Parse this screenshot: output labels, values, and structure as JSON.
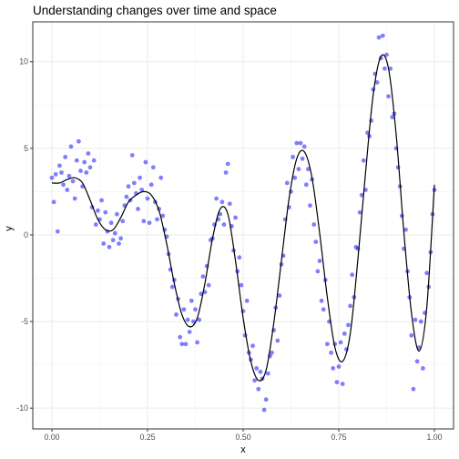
{
  "chart_data": {
    "type": "scatter",
    "title": "Understanding changes over time and space",
    "xlabel": "x",
    "ylabel": "y",
    "xlim": [
      -0.05,
      1.05
    ],
    "ylim": [
      -11.2,
      12.3
    ],
    "x_ticks": [
      0.0,
      0.25,
      0.5,
      0.75,
      1.0
    ],
    "x_tick_labels": [
      "0.00",
      "0.25",
      "0.50",
      "0.75",
      "1.00"
    ],
    "y_ticks": [
      -10,
      -5,
      0,
      5,
      10
    ],
    "y_tick_labels": [
      "-10",
      "-5",
      "0",
      "5",
      "10"
    ],
    "grid": true,
    "legend": "none",
    "point_color": "#0000ff",
    "point_alpha": 0.5,
    "line_color": "#000000",
    "fitted_curve": {
      "x": [
        0.0,
        0.02,
        0.04,
        0.06,
        0.08,
        0.1,
        0.12,
        0.14,
        0.16,
        0.18,
        0.2,
        0.22,
        0.24,
        0.26,
        0.28,
        0.3,
        0.32,
        0.34,
        0.36,
        0.38,
        0.4,
        0.42,
        0.44,
        0.46,
        0.48,
        0.5,
        0.52,
        0.54,
        0.56,
        0.58,
        0.6,
        0.62,
        0.64,
        0.66,
        0.68,
        0.7,
        0.72,
        0.74,
        0.76,
        0.78,
        0.8,
        0.82,
        0.84,
        0.86,
        0.88,
        0.9,
        0.92,
        0.94,
        0.96,
        0.98,
        1.0
      ],
      "y": [
        3.0,
        3.0,
        3.2,
        3.3,
        3.0,
        2.0,
        0.9,
        0.3,
        0.3,
        1.0,
        1.9,
        2.3,
        2.5,
        2.3,
        1.4,
        -0.5,
        -2.8,
        -4.6,
        -5.3,
        -4.8,
        -2.8,
        -0.2,
        1.5,
        1.2,
        -1.5,
        -4.8,
        -7.3,
        -8.4,
        -7.8,
        -5.1,
        -1.5,
        2.1,
        4.4,
        4.8,
        3.3,
        0.1,
        -3.6,
        -6.5,
        -7.3,
        -5.7,
        -1.4,
        3.6,
        8.1,
        10.3,
        9.6,
        5.8,
        0.2,
        -4.5,
        -6.7,
        -4.2,
        2.9
      ]
    },
    "points": [
      {
        "x": 0.0,
        "y": 3.3
      },
      {
        "x": 0.005,
        "y": 1.9
      },
      {
        "x": 0.01,
        "y": 3.5
      },
      {
        "x": 0.015,
        "y": 0.2
      },
      {
        "x": 0.02,
        "y": 4.0
      },
      {
        "x": 0.025,
        "y": 3.6
      },
      {
        "x": 0.03,
        "y": 2.9
      },
      {
        "x": 0.035,
        "y": 4.5
      },
      {
        "x": 0.04,
        "y": 2.6
      },
      {
        "x": 0.045,
        "y": 3.4
      },
      {
        "x": 0.05,
        "y": 5.1
      },
      {
        "x": 0.055,
        "y": 3.1
      },
      {
        "x": 0.06,
        "y": 2.1
      },
      {
        "x": 0.065,
        "y": 4.3
      },
      {
        "x": 0.07,
        "y": 5.4
      },
      {
        "x": 0.075,
        "y": 3.7
      },
      {
        "x": 0.08,
        "y": 2.8
      },
      {
        "x": 0.085,
        "y": 4.2
      },
      {
        "x": 0.09,
        "y": 3.6
      },
      {
        "x": 0.095,
        "y": 4.7
      },
      {
        "x": 0.1,
        "y": 3.9
      },
      {
        "x": 0.105,
        "y": 1.6
      },
      {
        "x": 0.11,
        "y": 4.3
      },
      {
        "x": 0.115,
        "y": 0.6
      },
      {
        "x": 0.12,
        "y": 1.4
      },
      {
        "x": 0.125,
        "y": 0.9
      },
      {
        "x": 0.13,
        "y": 2.0
      },
      {
        "x": 0.135,
        "y": -0.5
      },
      {
        "x": 0.14,
        "y": 1.3
      },
      {
        "x": 0.145,
        "y": 0.2
      },
      {
        "x": 0.15,
        "y": -0.7
      },
      {
        "x": 0.155,
        "y": 0.7
      },
      {
        "x": 0.16,
        "y": -0.3
      },
      {
        "x": 0.165,
        "y": 0.1
      },
      {
        "x": 0.17,
        "y": 1.2
      },
      {
        "x": 0.175,
        "y": -0.5
      },
      {
        "x": 0.18,
        "y": -0.2
      },
      {
        "x": 0.185,
        "y": 0.8
      },
      {
        "x": 0.19,
        "y": 1.7
      },
      {
        "x": 0.195,
        "y": 2.2
      },
      {
        "x": 0.2,
        "y": 2.8
      },
      {
        "x": 0.205,
        "y": 2.0
      },
      {
        "x": 0.21,
        "y": 4.6
      },
      {
        "x": 0.215,
        "y": 3.0
      },
      {
        "x": 0.22,
        "y": 2.4
      },
      {
        "x": 0.225,
        "y": 1.5
      },
      {
        "x": 0.23,
        "y": 3.3
      },
      {
        "x": 0.235,
        "y": 2.6
      },
      {
        "x": 0.24,
        "y": 0.8
      },
      {
        "x": 0.245,
        "y": 4.2
      },
      {
        "x": 0.25,
        "y": 2.1
      },
      {
        "x": 0.255,
        "y": 0.7
      },
      {
        "x": 0.26,
        "y": 2.9
      },
      {
        "x": 0.265,
        "y": 3.9
      },
      {
        "x": 0.27,
        "y": 1.9
      },
      {
        "x": 0.275,
        "y": 0.9
      },
      {
        "x": 0.28,
        "y": 1.5
      },
      {
        "x": 0.285,
        "y": 3.3
      },
      {
        "x": 0.29,
        "y": 1.1
      },
      {
        "x": 0.295,
        "y": 0.3
      },
      {
        "x": 0.3,
        "y": -0.1
      },
      {
        "x": 0.305,
        "y": -1.1
      },
      {
        "x": 0.31,
        "y": -2.0
      },
      {
        "x": 0.315,
        "y": -3.0
      },
      {
        "x": 0.32,
        "y": -2.6
      },
      {
        "x": 0.325,
        "y": -4.6
      },
      {
        "x": 0.33,
        "y": -3.7
      },
      {
        "x": 0.335,
        "y": -5.9
      },
      {
        "x": 0.34,
        "y": -6.3
      },
      {
        "x": 0.345,
        "y": -4.3
      },
      {
        "x": 0.35,
        "y": -6.3
      },
      {
        "x": 0.355,
        "y": -4.9
      },
      {
        "x": 0.36,
        "y": -5.6
      },
      {
        "x": 0.365,
        "y": -3.8
      },
      {
        "x": 0.37,
        "y": -5.0
      },
      {
        "x": 0.375,
        "y": -4.3
      },
      {
        "x": 0.38,
        "y": -6.2
      },
      {
        "x": 0.385,
        "y": -4.9
      },
      {
        "x": 0.39,
        "y": -3.4
      },
      {
        "x": 0.395,
        "y": -2.4
      },
      {
        "x": 0.4,
        "y": -3.3
      },
      {
        "x": 0.405,
        "y": -1.8
      },
      {
        "x": 0.41,
        "y": -2.9
      },
      {
        "x": 0.415,
        "y": -0.3
      },
      {
        "x": 0.42,
        "y": -0.2
      },
      {
        "x": 0.425,
        "y": 0.6
      },
      {
        "x": 0.43,
        "y": 2.1
      },
      {
        "x": 0.435,
        "y": 0.9
      },
      {
        "x": 0.44,
        "y": 1.2
      },
      {
        "x": 0.445,
        "y": 1.9
      },
      {
        "x": 0.45,
        "y": 0.6
      },
      {
        "x": 0.455,
        "y": 3.6
      },
      {
        "x": 0.46,
        "y": 4.1
      },
      {
        "x": 0.465,
        "y": 1.8
      },
      {
        "x": 0.47,
        "y": 0.5
      },
      {
        "x": 0.475,
        "y": -0.9
      },
      {
        "x": 0.48,
        "y": 1.0
      },
      {
        "x": 0.485,
        "y": -2.1
      },
      {
        "x": 0.49,
        "y": -1.3
      },
      {
        "x": 0.495,
        "y": -2.9
      },
      {
        "x": 0.5,
        "y": -4.4
      },
      {
        "x": 0.505,
        "y": -5.8
      },
      {
        "x": 0.51,
        "y": -3.8
      },
      {
        "x": 0.515,
        "y": -6.8
      },
      {
        "x": 0.52,
        "y": -7.2
      },
      {
        "x": 0.525,
        "y": -6.4
      },
      {
        "x": 0.53,
        "y": -8.4
      },
      {
        "x": 0.535,
        "y": -7.7
      },
      {
        "x": 0.54,
        "y": -8.9
      },
      {
        "x": 0.545,
        "y": -7.9
      },
      {
        "x": 0.55,
        "y": -8.3
      },
      {
        "x": 0.555,
        "y": -10.1
      },
      {
        "x": 0.56,
        "y": -9.5
      },
      {
        "x": 0.565,
        "y": -8.0
      },
      {
        "x": 0.57,
        "y": -7.0
      },
      {
        "x": 0.575,
        "y": -6.8
      },
      {
        "x": 0.58,
        "y": -5.5
      },
      {
        "x": 0.585,
        "y": -4.2
      },
      {
        "x": 0.59,
        "y": -6.1
      },
      {
        "x": 0.595,
        "y": -3.5
      },
      {
        "x": 0.6,
        "y": -1.7
      },
      {
        "x": 0.605,
        "y": -1.2
      },
      {
        "x": 0.61,
        "y": 0.9
      },
      {
        "x": 0.615,
        "y": 3.0
      },
      {
        "x": 0.62,
        "y": 1.6
      },
      {
        "x": 0.625,
        "y": 2.5
      },
      {
        "x": 0.63,
        "y": 4.5
      },
      {
        "x": 0.635,
        "y": 3.3
      },
      {
        "x": 0.64,
        "y": 5.3
      },
      {
        "x": 0.645,
        "y": 3.8
      },
      {
        "x": 0.65,
        "y": 5.3
      },
      {
        "x": 0.655,
        "y": 4.4
      },
      {
        "x": 0.66,
        "y": 5.1
      },
      {
        "x": 0.665,
        "y": 2.9
      },
      {
        "x": 0.67,
        "y": 3.8
      },
      {
        "x": 0.675,
        "y": 1.7
      },
      {
        "x": 0.68,
        "y": 3.2
      },
      {
        "x": 0.685,
        "y": 0.6
      },
      {
        "x": 0.69,
        "y": -0.4
      },
      {
        "x": 0.695,
        "y": -2.1
      },
      {
        "x": 0.7,
        "y": -1.5
      },
      {
        "x": 0.705,
        "y": -3.8
      },
      {
        "x": 0.71,
        "y": -4.3
      },
      {
        "x": 0.715,
        "y": -2.6
      },
      {
        "x": 0.72,
        "y": -6.3
      },
      {
        "x": 0.725,
        "y": -5.0
      },
      {
        "x": 0.73,
        "y": -6.8
      },
      {
        "x": 0.735,
        "y": -7.7
      },
      {
        "x": 0.74,
        "y": -6.3
      },
      {
        "x": 0.745,
        "y": -8.5
      },
      {
        "x": 0.75,
        "y": -7.6
      },
      {
        "x": 0.755,
        "y": -6.2
      },
      {
        "x": 0.76,
        "y": -8.6
      },
      {
        "x": 0.765,
        "y": -5.7
      },
      {
        "x": 0.77,
        "y": -6.6
      },
      {
        "x": 0.775,
        "y": -5.2
      },
      {
        "x": 0.78,
        "y": -4.1
      },
      {
        "x": 0.785,
        "y": -2.3
      },
      {
        "x": 0.79,
        "y": -3.6
      },
      {
        "x": 0.795,
        "y": -0.7
      },
      {
        "x": 0.8,
        "y": -0.8
      },
      {
        "x": 0.805,
        "y": 1.3
      },
      {
        "x": 0.81,
        "y": 2.3
      },
      {
        "x": 0.815,
        "y": 4.3
      },
      {
        "x": 0.82,
        "y": 2.6
      },
      {
        "x": 0.825,
        "y": 5.9
      },
      {
        "x": 0.83,
        "y": 5.7
      },
      {
        "x": 0.835,
        "y": 6.6
      },
      {
        "x": 0.84,
        "y": 8.4
      },
      {
        "x": 0.845,
        "y": 9.3
      },
      {
        "x": 0.85,
        "y": 8.8
      },
      {
        "x": 0.855,
        "y": 11.4
      },
      {
        "x": 0.86,
        "y": 10.2
      },
      {
        "x": 0.865,
        "y": 11.5
      },
      {
        "x": 0.87,
        "y": 9.6
      },
      {
        "x": 0.875,
        "y": 10.4
      },
      {
        "x": 0.88,
        "y": 8.0
      },
      {
        "x": 0.885,
        "y": 9.6
      },
      {
        "x": 0.89,
        "y": 6.8
      },
      {
        "x": 0.895,
        "y": 7.0
      },
      {
        "x": 0.9,
        "y": 5.0
      },
      {
        "x": 0.905,
        "y": 3.9
      },
      {
        "x": 0.91,
        "y": 2.8
      },
      {
        "x": 0.915,
        "y": 1.1
      },
      {
        "x": 0.92,
        "y": -0.8
      },
      {
        "x": 0.925,
        "y": 0.3
      },
      {
        "x": 0.93,
        "y": -2.1
      },
      {
        "x": 0.935,
        "y": -3.6
      },
      {
        "x": 0.94,
        "y": -5.8
      },
      {
        "x": 0.945,
        "y": -8.9
      },
      {
        "x": 0.95,
        "y": -4.9
      },
      {
        "x": 0.955,
        "y": -7.3
      },
      {
        "x": 0.96,
        "y": -6.5
      },
      {
        "x": 0.965,
        "y": -5.0
      },
      {
        "x": 0.97,
        "y": -7.7
      },
      {
        "x": 0.975,
        "y": -4.5
      },
      {
        "x": 0.98,
        "y": -2.2
      },
      {
        "x": 0.985,
        "y": -3.0
      },
      {
        "x": 0.99,
        "y": -1.0
      },
      {
        "x": 0.995,
        "y": 1.2
      },
      {
        "x": 1.0,
        "y": 2.6
      }
    ]
  }
}
